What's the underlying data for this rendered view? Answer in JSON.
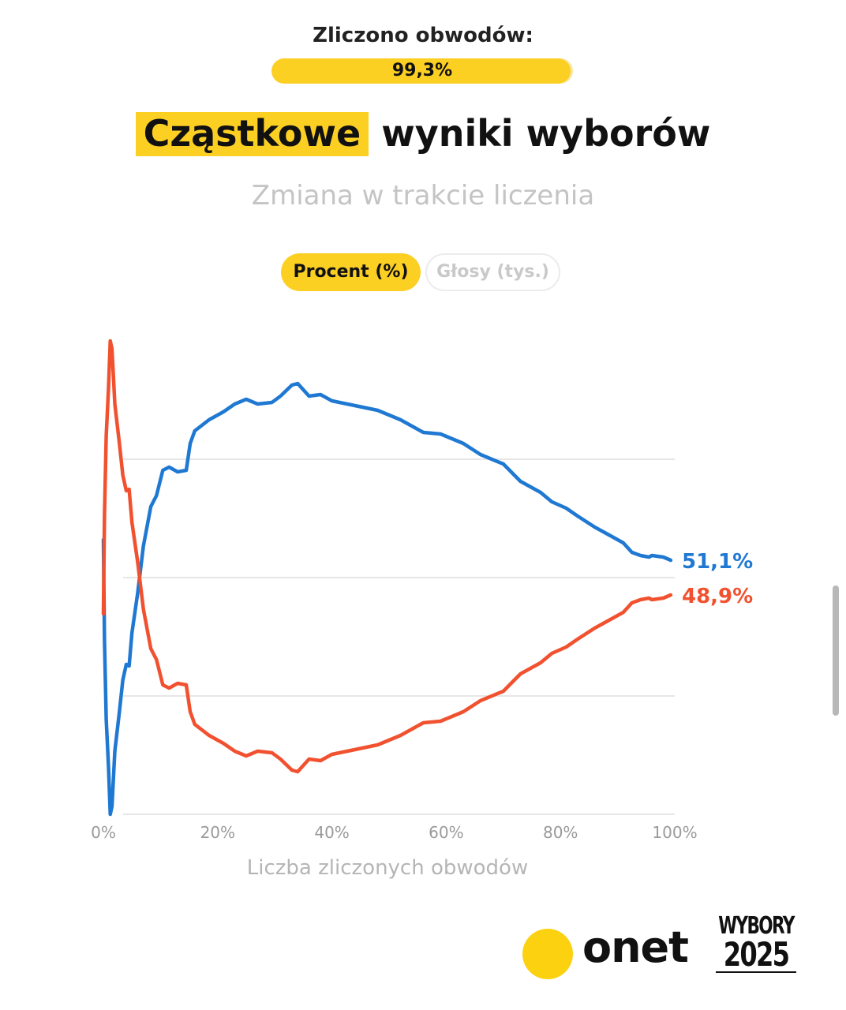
{
  "header": {
    "counted_label": "Zliczono obwodów:",
    "progress_text": "99,3%",
    "progress_fraction": 0.993
  },
  "title": {
    "highlight": "Cząstkowe",
    "rest": "wyniki wyborów"
  },
  "subtitle": "Zmiana w trakcie liczenia",
  "toggles": {
    "active": "Procent (%)",
    "inactive": "Głosy (tys.)"
  },
  "colors": {
    "accent": "#fccf23",
    "blue": "#1f78d1",
    "red": "#f1512f"
  },
  "footer": {
    "brand": "onet",
    "event_line1": "WYBORY",
    "event_line2": "2025"
  },
  "chart_data": {
    "type": "line",
    "xlabel": "Liczba zliczonych obwodów",
    "ylabel": "",
    "xlim": [
      0,
      100
    ],
    "ylim": [
      35,
      65
    ],
    "x_ticks": [
      "0%",
      "20%",
      "40%",
      "60%",
      "80%",
      "100%"
    ],
    "gridlines_y": [
      42.5,
      50,
      57.5
    ],
    "grid": true,
    "series": [
      {
        "color": "#1f78d1",
        "end_label": "51,1%",
        "points": [
          [
            0,
            52.4
          ],
          [
            0.2,
            46.0
          ],
          [
            0.5,
            41.0
          ],
          [
            0.9,
            38.0
          ],
          [
            1.2,
            35.0
          ],
          [
            1.5,
            35.5
          ],
          [
            2.0,
            39.0
          ],
          [
            2.8,
            41.5
          ],
          [
            3.4,
            43.5
          ],
          [
            4.0,
            44.5
          ],
          [
            4.5,
            44.4
          ],
          [
            5.0,
            46.5
          ],
          [
            6.0,
            49.0
          ],
          [
            7.0,
            52.0
          ],
          [
            8.3,
            54.5
          ],
          [
            9.3,
            55.2
          ],
          [
            10.4,
            56.8
          ],
          [
            11.5,
            57.0
          ],
          [
            13.0,
            56.7
          ],
          [
            14.5,
            56.8
          ],
          [
            15.2,
            58.5
          ],
          [
            16.0,
            59.3
          ],
          [
            18.5,
            60.0
          ],
          [
            21.0,
            60.5
          ],
          [
            23.0,
            61.0
          ],
          [
            25.0,
            61.3
          ],
          [
            27.0,
            61.0
          ],
          [
            29.5,
            61.1
          ],
          [
            31.0,
            61.5
          ],
          [
            33.0,
            62.2
          ],
          [
            34.0,
            62.3
          ],
          [
            36.0,
            61.5
          ],
          [
            38.0,
            61.6
          ],
          [
            40.0,
            61.2
          ],
          [
            44.0,
            60.9
          ],
          [
            48.0,
            60.6
          ],
          [
            52.0,
            60.0
          ],
          [
            56.0,
            59.2
          ],
          [
            59.0,
            59.1
          ],
          [
            63.0,
            58.5
          ],
          [
            66.0,
            57.8
          ],
          [
            70.0,
            57.2
          ],
          [
            73.0,
            56.1
          ],
          [
            76.5,
            55.4
          ],
          [
            78.5,
            54.8
          ],
          [
            81.0,
            54.4
          ],
          [
            83.0,
            53.9
          ],
          [
            86.0,
            53.2
          ],
          [
            89.0,
            52.6
          ],
          [
            91.0,
            52.2
          ],
          [
            92.5,
            51.6
          ],
          [
            94.0,
            51.4
          ],
          [
            95.5,
            51.3
          ],
          [
            96.0,
            51.4
          ],
          [
            98.0,
            51.3
          ],
          [
            99.3,
            51.1
          ]
        ]
      },
      {
        "color": "#f1512f",
        "end_label": "48,9%",
        "points": [
          [
            0,
            47.7
          ],
          [
            0.2,
            54.0
          ],
          [
            0.5,
            59.0
          ],
          [
            0.9,
            62.0
          ],
          [
            1.2,
            65.0
          ],
          [
            1.5,
            64.5
          ],
          [
            2.0,
            61.0
          ],
          [
            2.8,
            58.5
          ],
          [
            3.4,
            56.5
          ],
          [
            4.0,
            55.5
          ],
          [
            4.5,
            55.6
          ],
          [
            5.0,
            53.5
          ],
          [
            6.0,
            51.0
          ],
          [
            7.0,
            48.0
          ],
          [
            8.3,
            45.5
          ],
          [
            9.3,
            44.8
          ],
          [
            10.4,
            43.2
          ],
          [
            11.5,
            43.0
          ],
          [
            13.0,
            43.3
          ],
          [
            14.5,
            43.2
          ],
          [
            15.2,
            41.5
          ],
          [
            16.0,
            40.7
          ],
          [
            18.5,
            40.0
          ],
          [
            21.0,
            39.5
          ],
          [
            23.0,
            39.0
          ],
          [
            25.0,
            38.7
          ],
          [
            27.0,
            39.0
          ],
          [
            29.5,
            38.9
          ],
          [
            31.0,
            38.5
          ],
          [
            33.0,
            37.8
          ],
          [
            34.0,
            37.7
          ],
          [
            36.0,
            38.5
          ],
          [
            38.0,
            38.4
          ],
          [
            40.0,
            38.8
          ],
          [
            44.0,
            39.1
          ],
          [
            48.0,
            39.4
          ],
          [
            52.0,
            40.0
          ],
          [
            56.0,
            40.8
          ],
          [
            59.0,
            40.9
          ],
          [
            63.0,
            41.5
          ],
          [
            66.0,
            42.2
          ],
          [
            70.0,
            42.8
          ],
          [
            73.0,
            43.9
          ],
          [
            76.5,
            44.6
          ],
          [
            78.5,
            45.2
          ],
          [
            81.0,
            45.6
          ],
          [
            83.0,
            46.1
          ],
          [
            86.0,
            46.8
          ],
          [
            89.0,
            47.4
          ],
          [
            91.0,
            47.8
          ],
          [
            92.5,
            48.4
          ],
          [
            94.0,
            48.6
          ],
          [
            95.5,
            48.7
          ],
          [
            96.0,
            48.6
          ],
          [
            98.0,
            48.7
          ],
          [
            99.3,
            48.9
          ]
        ]
      }
    ]
  }
}
